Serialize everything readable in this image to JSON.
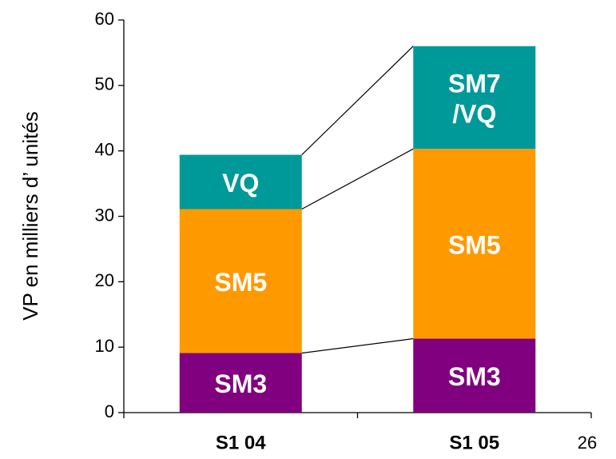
{
  "chart_data": {
    "type": "stacked_bar",
    "y_label": "VP en milliers d’ unités",
    "categories": [
      "S1 04",
      "S1 05"
    ],
    "series": [
      {
        "color": "#800080",
        "values": [
          9.1,
          11.3
        ],
        "labels": [
          [
            "SM3"
          ],
          [
            "SM3"
          ]
        ]
      },
      {
        "color": "#ff9900",
        "values": [
          22.0,
          29.0
        ],
        "labels": [
          [
            "SM5"
          ],
          [
            "SM5"
          ]
        ]
      },
      {
        "color": "#009999",
        "values": [
          8.3,
          15.7
        ],
        "labels": [
          [
            "VQ"
          ],
          [
            "SM7",
            "/VQ"
          ]
        ]
      }
    ],
    "ylim": [
      0,
      60
    ],
    "yticks": [
      0,
      10,
      20,
      30,
      40,
      50,
      60
    ],
    "page_number": "26"
  }
}
